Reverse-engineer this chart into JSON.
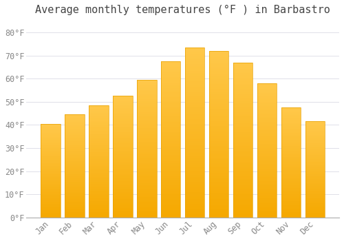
{
  "title": "Average monthly temperatures (°F ) in Barbastro",
  "months": [
    "Jan",
    "Feb",
    "Mar",
    "Apr",
    "May",
    "Jun",
    "Jul",
    "Aug",
    "Sep",
    "Oct",
    "Nov",
    "Dec"
  ],
  "values": [
    40.5,
    44.5,
    48.5,
    52.5,
    59.5,
    67.5,
    73.5,
    72.0,
    67.0,
    58.0,
    47.5,
    41.5
  ],
  "bar_color_top": "#FFC84A",
  "bar_color_bottom": "#F5A800",
  "bar_edge_color": "#E8A000",
  "background_color": "#FFFFFF",
  "grid_color": "#E0E0E8",
  "ylim": [
    0,
    85
  ],
  "yticks": [
    0,
    10,
    20,
    30,
    40,
    50,
    60,
    70,
    80
  ],
  "title_fontsize": 11,
  "tick_fontsize": 8.5,
  "tick_color": "#888888",
  "title_color": "#444444"
}
